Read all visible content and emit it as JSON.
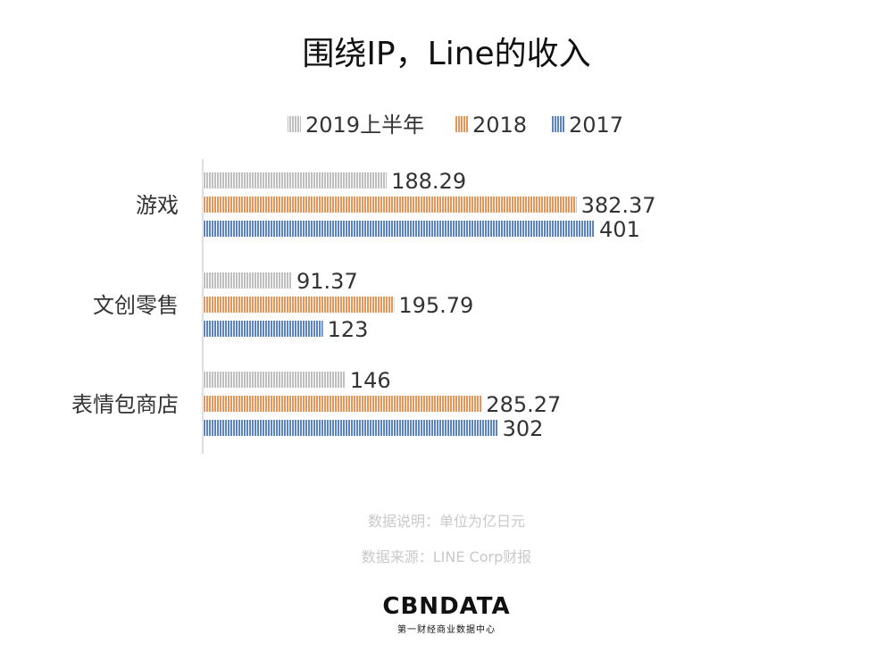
{
  "chart_data": {
    "type": "bar",
    "orientation": "horizontal",
    "title": "围绕IP，Line的收入",
    "categories": [
      "游戏",
      "文创零售",
      "表情包商店"
    ],
    "series": [
      {
        "name": "2019上半年",
        "values": [
          188.29,
          91.37,
          146
        ],
        "labels": [
          "188.29",
          "91.37",
          "146"
        ],
        "color": "#bfbfbf"
      },
      {
        "name": "2018",
        "values": [
          382.37,
          195.79,
          285.27
        ],
        "labels": [
          "382.37",
          "195.79",
          "285.27"
        ],
        "color": "#e8955a"
      },
      {
        "name": "2017",
        "values": [
          401,
          123,
          302
        ],
        "labels": [
          "401",
          "123",
          "302"
        ],
        "color": "#5b84c8"
      }
    ],
    "xlim": [
      0,
      401
    ],
    "grid": false,
    "legend_position": "top"
  },
  "notes": {
    "unit": "数据说明：单位为亿日元",
    "source": "数据来源：LINE Corp财报"
  },
  "brand": {
    "logo": "CBNDATA",
    "subtitle": "第一财经商业数据中心"
  }
}
